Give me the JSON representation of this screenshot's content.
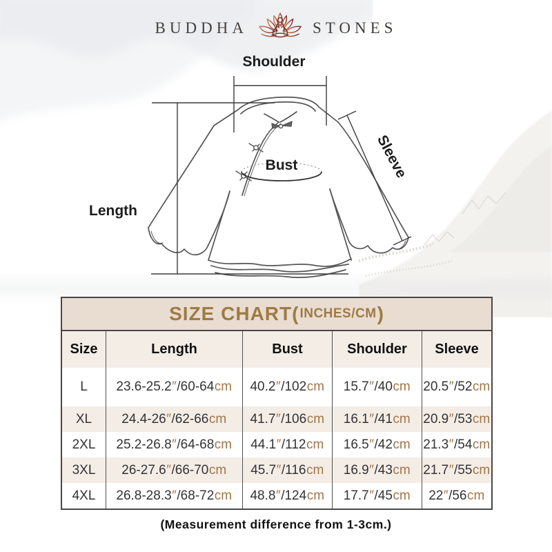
{
  "brand": {
    "word_left": "BUDDHA",
    "word_right": "STONES",
    "icon": "lotus-meditation-icon"
  },
  "diagram": {
    "shoulder_label": "Shoulder",
    "bust_label": "Bust",
    "length_label": "Length",
    "sleeve_label": "Sleeve"
  },
  "size_chart": {
    "title_main": "SIZE CHART(",
    "title_unit": "INCHES/CM",
    "title_close": ")"
  },
  "chart_data": {
    "type": "table",
    "title": "SIZE CHART(INCHES/CM)",
    "columns": [
      "Size",
      "Length",
      "Bust",
      "Shoulder",
      "Sleeve"
    ],
    "rows": [
      [
        "L",
        "23.6-25.2″/60-64cm",
        "40.2″/102cm",
        "15.7″/40cm",
        "20.5″/52cm"
      ],
      [
        "XL",
        "24.4-26″/62-66cm",
        "41.7″/106cm",
        "16.1″/41cm",
        "20.9″/53cm"
      ],
      [
        "2XL",
        "25.2-26.8″/64-68cm",
        "44.1″/112cm",
        "16.5″/42cm",
        "21.3″/54cm"
      ],
      [
        "3XL",
        "26-27.6″/66-70cm",
        "45.7″/116cm",
        "16.9″/43cm",
        "21.7″/55cm"
      ],
      [
        "4XL",
        "26.8-28.3″/68-72cm",
        "48.8″/124cm",
        "17.7″/45cm",
        "22″/56cm"
      ]
    ]
  },
  "footer": {
    "note": "(Measurement difference from 1-3cm.)"
  },
  "colors": {
    "accent_brown": "#9d7b45",
    "unit_brown": "#a1764a",
    "table_header_bg": "#e9dcd1",
    "row_alt_bg": "#f4ede6",
    "border_dark": "#474747",
    "logo_copper": "#c97f54",
    "logo_maroon": "#7c2f2b"
  }
}
